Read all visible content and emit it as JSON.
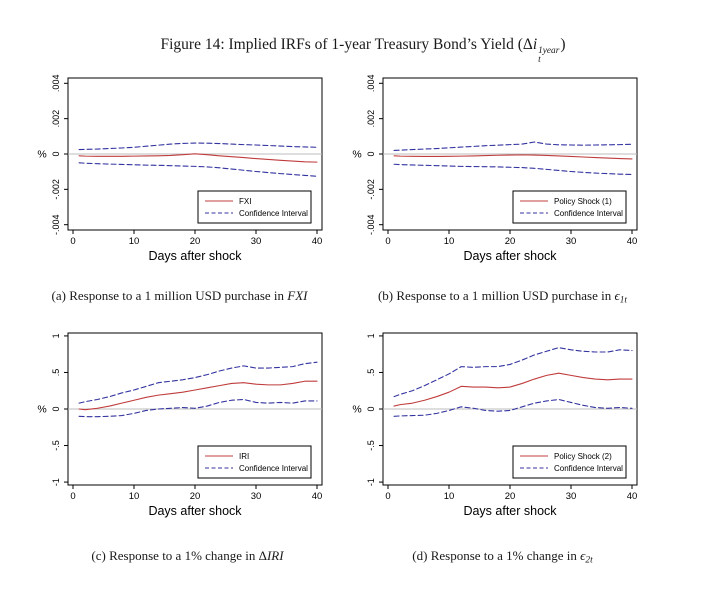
{
  "figure": {
    "title": {
      "prefix": "Figure 14: Implied IRFs of 1-year Treasury Bond’s Yield (Δ",
      "var": "i",
      "sup": "1year",
      "sub": "t",
      "suffix": ")"
    },
    "captions": [
      {
        "label": "(a)",
        "text": "Response to a 1 million USD purchase in ",
        "math_pre": "",
        "math_core": "FXI",
        "math_sub": ""
      },
      {
        "label": "(b)",
        "text": "Response to a 1 million USD purchase in ",
        "math_pre": "",
        "math_core": "ϵ",
        "math_sub": "1t"
      },
      {
        "label": "(c)",
        "text": "Response to a 1% change in ",
        "math_pre": "Δ",
        "math_core": "IRI",
        "math_sub": ""
      },
      {
        "label": "(d)",
        "text": "Response to a 1% change in ",
        "math_pre": "",
        "math_core": "ϵ",
        "math_sub": "2t"
      }
    ]
  },
  "colors": {
    "line": "#c03c3c",
    "ci": "#3333a0",
    "zero": "#bdbdbd",
    "frame": "#000000",
    "text": "#000000"
  },
  "chart_data": [
    {
      "id": "a",
      "type": "line",
      "xlabel": "Days after shock",
      "ylabel": "%",
      "xlim": [
        0,
        40
      ],
      "ylim": [
        -0.0043,
        0.0043
      ],
      "xticks": [
        0,
        10,
        20,
        30,
        40
      ],
      "yticks": [
        -0.004,
        -0.002,
        0,
        0.002,
        0.004
      ],
      "ytick_labels": [
        "-.004",
        "-.002",
        "0",
        ".002",
        ".004"
      ],
      "zero_line": true,
      "grid": false,
      "legend": {
        "position": "bottom-right",
        "entries": [
          {
            "label": "FXI",
            "style": "solid",
            "color_key": "line"
          },
          {
            "label": "Confidence Interval",
            "style": "dashed",
            "color_key": "ci"
          }
        ]
      },
      "x": [
        1,
        2,
        4,
        6,
        8,
        10,
        12,
        14,
        16,
        18,
        20,
        22,
        24,
        26,
        28,
        30,
        32,
        34,
        36,
        38,
        40
      ],
      "series": [
        {
          "name": "FXI",
          "role": "response",
          "style": "solid",
          "color_key": "line",
          "values": [
            -0.0001,
            -0.00012,
            -0.00013,
            -0.00013,
            -0.00013,
            -0.00012,
            -0.00011,
            -0.0001,
            -8e-05,
            -4e-05,
            1e-05,
            -4e-05,
            -0.0001,
            -0.00015,
            -0.0002,
            -0.00026,
            -0.00031,
            -0.00036,
            -0.0004,
            -0.00044,
            -0.00046
          ]
        },
        {
          "name": "Confidence Interval (upper)",
          "role": "ci-upper",
          "style": "dashed",
          "color_key": "ci",
          "values": [
            0.00025,
            0.00026,
            0.00028,
            0.00031,
            0.00034,
            0.00038,
            0.00044,
            0.0005,
            0.00056,
            0.0006,
            0.00062,
            0.00061,
            0.00059,
            0.00056,
            0.00053,
            0.00051,
            0.00048,
            0.00045,
            0.00042,
            0.0004,
            0.00038
          ]
        },
        {
          "name": "Confidence Interval (lower)",
          "role": "ci-lower",
          "style": "dashed",
          "color_key": "ci",
          "values": [
            -0.0005,
            -0.00052,
            -0.00055,
            -0.00057,
            -0.00059,
            -0.00061,
            -0.00063,
            -0.00064,
            -0.00066,
            -0.00068,
            -0.0007,
            -0.00073,
            -0.00078,
            -0.00085,
            -0.00092,
            -0.00099,
            -0.00105,
            -0.00111,
            -0.00116,
            -0.00121,
            -0.00126
          ]
        }
      ]
    },
    {
      "id": "b",
      "type": "line",
      "xlabel": "Days after shock",
      "ylabel": "%",
      "xlim": [
        0,
        40
      ],
      "ylim": [
        -0.0043,
        0.0043
      ],
      "xticks": [
        0,
        10,
        20,
        30,
        40
      ],
      "yticks": [
        -0.004,
        -0.002,
        0,
        0.002,
        0.004
      ],
      "ytick_labels": [
        "-.004",
        "-.002",
        "0",
        ".002",
        ".004"
      ],
      "zero_line": true,
      "grid": false,
      "legend": {
        "position": "bottom-right",
        "entries": [
          {
            "label": "Policy Shock (1)",
            "style": "solid",
            "color_key": "line"
          },
          {
            "label": "Confidence Interval",
            "style": "dashed",
            "color_key": "ci"
          }
        ]
      },
      "x": [
        1,
        2,
        4,
        6,
        8,
        10,
        12,
        14,
        16,
        18,
        20,
        22,
        24,
        26,
        28,
        30,
        32,
        34,
        36,
        38,
        40
      ],
      "series": [
        {
          "name": "Policy Shock (1)",
          "role": "response",
          "style": "solid",
          "color_key": "line",
          "values": [
            -0.0001,
            -0.00012,
            -0.00013,
            -0.00014,
            -0.00014,
            -0.00013,
            -0.00012,
            -0.00011,
            -9e-05,
            -7e-05,
            -6e-05,
            -5e-05,
            -6e-05,
            -8e-05,
            -0.00011,
            -0.00014,
            -0.00017,
            -0.0002,
            -0.00023,
            -0.00026,
            -0.00028
          ]
        },
        {
          "name": "Confidence Interval (upper)",
          "role": "ci-upper",
          "style": "dashed",
          "color_key": "ci",
          "values": [
            0.0002,
            0.00022,
            0.00025,
            0.00028,
            0.00031,
            0.00035,
            0.00039,
            0.00043,
            0.00047,
            0.0005,
            0.00053,
            0.00056,
            0.00068,
            0.00056,
            0.00052,
            0.00051,
            0.0005,
            0.00051,
            0.00052,
            0.00053,
            0.00055
          ]
        },
        {
          "name": "Confidence Interval (lower)",
          "role": "ci-lower",
          "style": "dashed",
          "color_key": "ci",
          "values": [
            -0.00058,
            -0.0006,
            -0.00062,
            -0.00064,
            -0.00066,
            -0.00068,
            -0.0007,
            -0.00071,
            -0.00072,
            -0.00073,
            -0.00075,
            -0.00077,
            -0.00081,
            -0.00087,
            -0.00093,
            -0.00099,
            -0.00104,
            -0.00108,
            -0.00111,
            -0.00114,
            -0.00116
          ]
        }
      ]
    },
    {
      "id": "c",
      "type": "line",
      "xlabel": "Days after shock",
      "ylabel": "%",
      "xlim": [
        0,
        40
      ],
      "ylim": [
        -1.04,
        1.04
      ],
      "xticks": [
        0,
        10,
        20,
        30,
        40
      ],
      "yticks": [
        -1,
        -0.5,
        0,
        0.5,
        1
      ],
      "ytick_labels": [
        "-1",
        "-.5",
        "0",
        ".5",
        "1"
      ],
      "zero_line": true,
      "grid": false,
      "legend": {
        "position": "bottom-right",
        "entries": [
          {
            "label": "IRI",
            "style": "solid",
            "color_key": "line"
          },
          {
            "label": "Confidence Interval",
            "style": "dashed",
            "color_key": "ci"
          }
        ]
      },
      "x": [
        1,
        2,
        4,
        6,
        8,
        10,
        12,
        14,
        16,
        18,
        20,
        22,
        24,
        26,
        28,
        30,
        32,
        34,
        36,
        38,
        40
      ],
      "series": [
        {
          "name": "IRI",
          "role": "response",
          "style": "solid",
          "color_key": "line",
          "values": [
            0.0,
            -0.01,
            0.01,
            0.04,
            0.08,
            0.12,
            0.16,
            0.19,
            0.21,
            0.23,
            0.26,
            0.29,
            0.32,
            0.35,
            0.36,
            0.34,
            0.33,
            0.33,
            0.35,
            0.38,
            0.38
          ]
        },
        {
          "name": "Confidence Interval (upper)",
          "role": "ci-upper",
          "style": "dashed",
          "color_key": "ci",
          "values": [
            0.08,
            0.1,
            0.13,
            0.17,
            0.22,
            0.26,
            0.31,
            0.36,
            0.38,
            0.4,
            0.43,
            0.47,
            0.52,
            0.56,
            0.59,
            0.56,
            0.56,
            0.57,
            0.58,
            0.62,
            0.64
          ]
        },
        {
          "name": "Confidence Interval (lower)",
          "role": "ci-lower",
          "style": "dashed",
          "color_key": "ci",
          "values": [
            -0.1,
            -0.105,
            -0.105,
            -0.1,
            -0.09,
            -0.06,
            -0.02,
            0.0,
            0.01,
            0.02,
            0.01,
            0.04,
            0.09,
            0.12,
            0.13,
            0.09,
            0.08,
            0.09,
            0.08,
            0.11,
            0.11
          ]
        }
      ]
    },
    {
      "id": "d",
      "type": "line",
      "xlabel": "Days after shock",
      "ylabel": "%",
      "xlim": [
        0,
        40
      ],
      "ylim": [
        -1.04,
        1.04
      ],
      "xticks": [
        0,
        10,
        20,
        30,
        40
      ],
      "yticks": [
        -1,
        -0.5,
        0,
        0.5,
        1
      ],
      "ytick_labels": [
        "-1",
        "-.5",
        "0",
        ".5",
        "1"
      ],
      "zero_line": true,
      "grid": false,
      "legend": {
        "position": "bottom-right",
        "entries": [
          {
            "label": "Policy Shock (2)",
            "style": "solid",
            "color_key": "line"
          },
          {
            "label": "Confidence Interval",
            "style": "dashed",
            "color_key": "ci"
          }
        ]
      },
      "x": [
        1,
        2,
        4,
        6,
        8,
        10,
        12,
        14,
        16,
        18,
        20,
        22,
        24,
        26,
        28,
        30,
        32,
        34,
        36,
        38,
        40
      ],
      "series": [
        {
          "name": "Policy Shock (2)",
          "role": "response",
          "style": "solid",
          "color_key": "line",
          "values": [
            0.04,
            0.06,
            0.08,
            0.12,
            0.17,
            0.23,
            0.31,
            0.3,
            0.3,
            0.29,
            0.3,
            0.35,
            0.41,
            0.46,
            0.49,
            0.46,
            0.43,
            0.41,
            0.4,
            0.41,
            0.41
          ]
        },
        {
          "name": "Confidence Interval (upper)",
          "role": "ci-upper",
          "style": "dashed",
          "color_key": "ci",
          "values": [
            0.17,
            0.2,
            0.25,
            0.32,
            0.4,
            0.48,
            0.58,
            0.57,
            0.58,
            0.58,
            0.61,
            0.67,
            0.74,
            0.79,
            0.84,
            0.81,
            0.79,
            0.78,
            0.78,
            0.81,
            0.8
          ]
        },
        {
          "name": "Confidence Interval (lower)",
          "role": "ci-lower",
          "style": "dashed",
          "color_key": "ci",
          "values": [
            -0.1,
            -0.095,
            -0.09,
            -0.085,
            -0.06,
            -0.02,
            0.03,
            0.01,
            -0.02,
            -0.03,
            -0.02,
            0.03,
            0.08,
            0.11,
            0.13,
            0.09,
            0.05,
            0.02,
            0.01,
            0.02,
            0.01
          ]
        }
      ]
    }
  ]
}
